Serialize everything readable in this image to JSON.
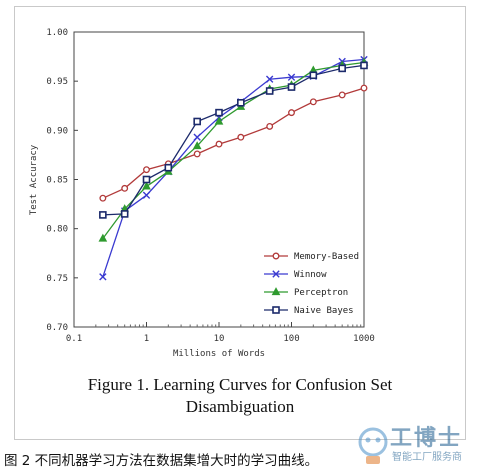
{
  "chart_data": {
    "type": "line",
    "ylabel": "Test Accuracy",
    "xlabel": "Millions of Words",
    "xscale": "log",
    "xlim": [
      0.1,
      1000
    ],
    "ylim": [
      0.7,
      1.0
    ],
    "xticks": [
      0.1,
      1,
      10,
      100,
      1000
    ],
    "xtick_labels": [
      "0.1",
      "1",
      "10",
      "100",
      "1000"
    ],
    "yticks": [
      0.7,
      0.75,
      0.8,
      0.85,
      0.9,
      0.95,
      1.0
    ],
    "ytick_labels": [
      "0.70",
      "0.75",
      "0.80",
      "0.85",
      "0.90",
      "0.95",
      "1.00"
    ],
    "grid": false,
    "legend_position": "lower-right",
    "series": [
      {
        "name": "Memory-Based",
        "color": "#b23a3a",
        "marker": "circle",
        "x": [
          0.25,
          0.5,
          1,
          2,
          5,
          10,
          20,
          50,
          100,
          200,
          500,
          1000
        ],
        "y": [
          0.831,
          0.841,
          0.86,
          0.866,
          0.876,
          0.886,
          0.893,
          0.904,
          0.918,
          0.929,
          0.936,
          0.943
        ]
      },
      {
        "name": "Winnow",
        "color": "#3a3ad0",
        "marker": "x",
        "x": [
          0.25,
          0.5,
          1,
          2,
          5,
          10,
          20,
          50,
          100,
          200,
          500,
          1000
        ],
        "y": [
          0.751,
          0.818,
          0.834,
          0.858,
          0.893,
          0.913,
          0.929,
          0.952,
          0.954,
          0.955,
          0.97,
          0.972
        ]
      },
      {
        "name": "Perceptron",
        "color": "#2f9a2f",
        "marker": "triangle",
        "x": [
          0.25,
          0.5,
          1,
          2,
          5,
          10,
          20,
          50,
          100,
          200,
          500,
          1000
        ],
        "y": [
          0.79,
          0.82,
          0.843,
          0.858,
          0.884,
          0.909,
          0.924,
          0.942,
          0.946,
          0.961,
          0.966,
          0.969
        ]
      },
      {
        "name": "Naive Bayes",
        "color": "#1c2a6b",
        "marker": "square",
        "x": [
          0.25,
          0.5,
          1,
          2,
          5,
          10,
          20,
          50,
          100,
          200,
          500,
          1000
        ],
        "y": [
          0.814,
          0.815,
          0.85,
          0.862,
          0.909,
          0.918,
          0.928,
          0.94,
          0.944,
          0.956,
          0.963,
          0.966
        ]
      }
    ]
  },
  "figure_caption": {
    "line1": "Figure 1. Learning Curves for Confusion Set",
    "line2": "Disambiguation"
  },
  "chinese_caption": "图 2  不同机器学习方法在数据集增大时的学习曲线。",
  "watermark": {
    "name": "工博士",
    "sub": "智能工厂服务商"
  }
}
